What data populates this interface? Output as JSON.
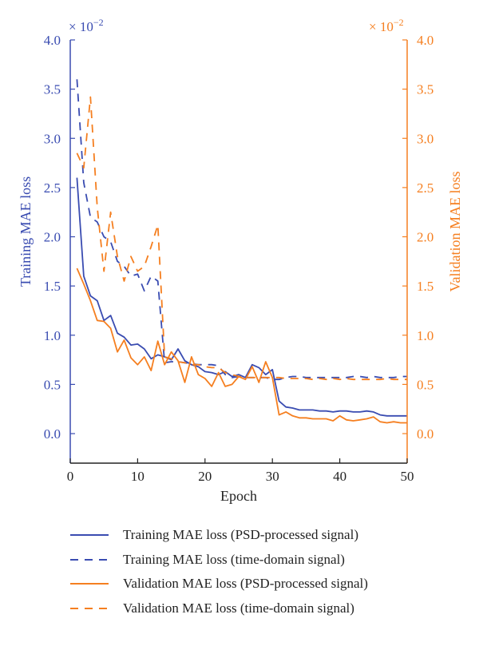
{
  "chart_data": {
    "type": "line",
    "xlabel": "Epoch",
    "ylabel_left": "Training MAE loss",
    "ylabel_right": "Validation MAE loss",
    "y_multiplier_left": "× 10",
    "y_multiplier_right": "× 10",
    "y_multiplier_exponent": "−2",
    "xlim": [
      0,
      50
    ],
    "ylim_left": [
      -0.3,
      4.0
    ],
    "ylim_right": [
      -0.3,
      4.0
    ],
    "x_ticks": [
      0,
      10,
      20,
      30,
      40,
      50
    ],
    "x_tick_labels": [
      "0",
      "10",
      "20",
      "30",
      "40",
      "50"
    ],
    "y_ticks": [
      0.0,
      0.5,
      1.0,
      1.5,
      2.0,
      2.5,
      3.0,
      3.5,
      4.0
    ],
    "y_tick_labels": [
      "0.0",
      "0.5",
      "1.0",
      "1.5",
      "2.0",
      "2.5",
      "3.0",
      "3.5",
      "4.0"
    ],
    "colors": {
      "training": "#3a4cb1",
      "validation": "#f57f20"
    },
    "series": [
      {
        "name": "Training MAE loss (PSD-processed signal)",
        "axis": "left",
        "color": "#3a4cb1",
        "dash": "solid",
        "x": [
          1,
          2,
          3,
          4,
          5,
          6,
          7,
          8,
          9,
          10,
          11,
          12,
          13,
          14,
          15,
          16,
          17,
          18,
          19,
          20,
          21,
          22,
          23,
          24,
          25,
          26,
          27,
          28,
          29,
          30,
          31,
          32,
          33,
          34,
          35,
          36,
          37,
          38,
          39,
          40,
          41,
          42,
          43,
          44,
          45,
          46,
          47,
          48,
          49,
          50
        ],
        "y": [
          2.6,
          1.6,
          1.4,
          1.35,
          1.15,
          1.2,
          1.02,
          0.98,
          0.9,
          0.91,
          0.86,
          0.76,
          0.8,
          0.78,
          0.75,
          0.86,
          0.74,
          0.7,
          0.68,
          0.63,
          0.62,
          0.6,
          0.63,
          0.58,
          0.6,
          0.57,
          0.7,
          0.67,
          0.6,
          0.65,
          0.33,
          0.27,
          0.26,
          0.24,
          0.24,
          0.24,
          0.23,
          0.23,
          0.22,
          0.23,
          0.23,
          0.22,
          0.22,
          0.23,
          0.22,
          0.19,
          0.18,
          0.18,
          0.18,
          0.18
        ]
      },
      {
        "name": "Training MAE loss (time-domain signal)",
        "axis": "left",
        "color": "#3a4cb1",
        "dash": "dashed",
        "x": [
          1,
          2,
          3,
          4,
          5,
          6,
          7,
          8,
          9,
          10,
          11,
          12,
          13,
          14,
          15,
          16,
          17,
          18,
          19,
          20,
          21,
          22,
          23,
          24,
          25,
          26,
          27,
          28,
          29,
          30,
          31,
          32,
          33,
          34,
          35,
          36,
          37,
          38,
          39,
          40,
          41,
          42,
          43,
          44,
          45,
          46,
          47,
          48,
          49,
          50
        ],
        "y": [
          3.6,
          2.55,
          2.2,
          2.15,
          2.0,
          1.95,
          1.75,
          1.7,
          1.6,
          1.62,
          1.45,
          1.6,
          1.55,
          0.72,
          0.73,
          0.73,
          0.72,
          0.71,
          0.7,
          0.7,
          0.7,
          0.69,
          0.6,
          0.57,
          0.58,
          0.57,
          0.57,
          0.57,
          0.57,
          0.55,
          0.55,
          0.57,
          0.58,
          0.58,
          0.57,
          0.57,
          0.57,
          0.57,
          0.57,
          0.57,
          0.57,
          0.58,
          0.58,
          0.57,
          0.58,
          0.57,
          0.57,
          0.57,
          0.58,
          0.58
        ]
      },
      {
        "name": "Validation MAE loss (PSD-processed signal)",
        "axis": "right",
        "color": "#f57f20",
        "dash": "solid",
        "x": [
          1,
          2,
          3,
          4,
          5,
          6,
          7,
          8,
          9,
          10,
          11,
          12,
          13,
          14,
          15,
          16,
          17,
          18,
          19,
          20,
          21,
          22,
          23,
          24,
          25,
          26,
          27,
          28,
          29,
          30,
          31,
          32,
          33,
          34,
          35,
          36,
          37,
          38,
          39,
          40,
          41,
          42,
          43,
          44,
          45,
          46,
          47,
          48,
          49,
          50
        ],
        "y": [
          1.68,
          1.52,
          1.35,
          1.15,
          1.14,
          1.07,
          0.83,
          0.95,
          0.77,
          0.7,
          0.78,
          0.64,
          0.94,
          0.7,
          0.83,
          0.74,
          0.52,
          0.78,
          0.6,
          0.56,
          0.48,
          0.62,
          0.48,
          0.5,
          0.58,
          0.55,
          0.68,
          0.52,
          0.73,
          0.57,
          0.19,
          0.22,
          0.18,
          0.16,
          0.16,
          0.15,
          0.15,
          0.15,
          0.13,
          0.18,
          0.14,
          0.13,
          0.14,
          0.15,
          0.17,
          0.12,
          0.11,
          0.12,
          0.11,
          0.11
        ]
      },
      {
        "name": "Validation MAE loss (time-domain signal)",
        "axis": "right",
        "color": "#f57f20",
        "dash": "dashed",
        "x": [
          1,
          2,
          3,
          4,
          5,
          6,
          7,
          8,
          9,
          10,
          11,
          12,
          13,
          14,
          15,
          16,
          17,
          18,
          19,
          20,
          21,
          22,
          23,
          24,
          25,
          26,
          27,
          28,
          29,
          30,
          31,
          32,
          33,
          34,
          35,
          36,
          37,
          38,
          39,
          40,
          41,
          42,
          43,
          44,
          45,
          46,
          47,
          48,
          49,
          50
        ],
        "y": [
          2.85,
          2.7,
          3.42,
          2.3,
          1.65,
          2.25,
          1.8,
          1.55,
          1.8,
          1.65,
          1.7,
          1.9,
          2.12,
          0.78,
          0.76,
          0.73,
          0.72,
          0.7,
          0.7,
          0.68,
          0.67,
          0.67,
          0.62,
          0.6,
          0.58,
          0.57,
          0.57,
          0.57,
          0.57,
          0.57,
          0.57,
          0.56,
          0.56,
          0.56,
          0.56,
          0.55,
          0.56,
          0.55,
          0.56,
          0.55,
          0.56,
          0.55,
          0.55,
          0.55,
          0.55,
          0.55,
          0.56,
          0.55,
          0.55,
          0.55
        ]
      }
    ]
  },
  "legend": [
    {
      "label": "Training MAE loss (PSD-processed signal)",
      "color": "#3a4cb1",
      "dash": "solid"
    },
    {
      "label": "Training MAE loss (time-domain signal)",
      "color": "#3a4cb1",
      "dash": "dashed"
    },
    {
      "label": "Validation MAE loss (PSD-processed signal)",
      "color": "#f57f20",
      "dash": "solid"
    },
    {
      "label": "Validation MAE loss (time-domain signal)",
      "color": "#f57f20",
      "dash": "dashed"
    }
  ]
}
